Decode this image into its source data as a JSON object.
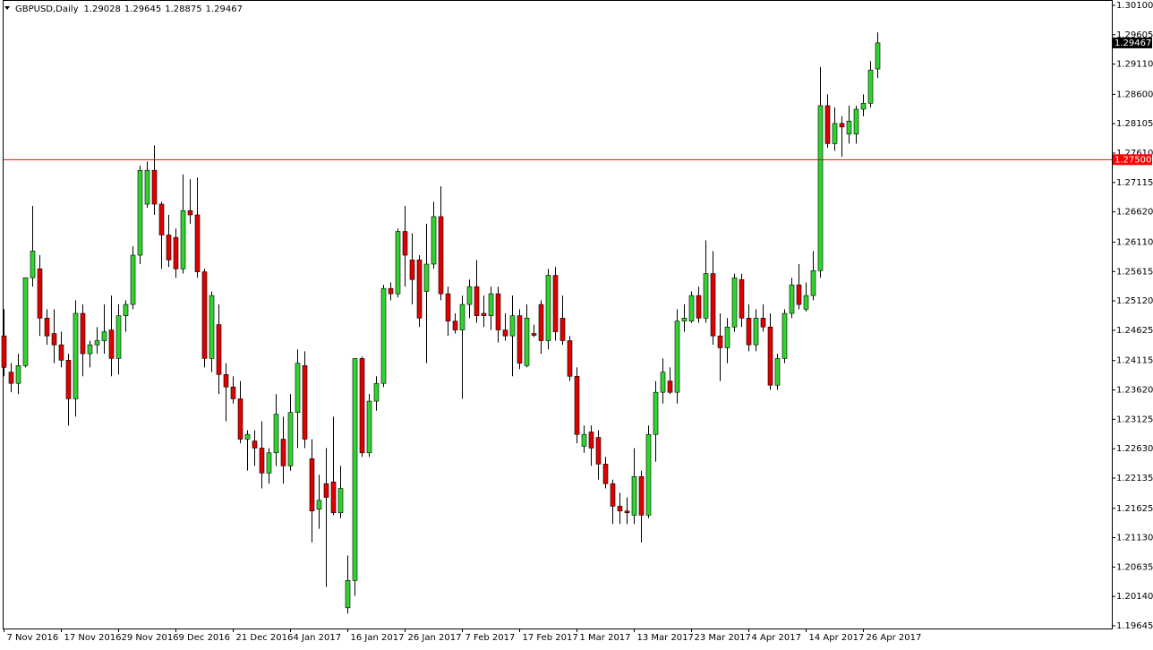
{
  "chart_data": {
    "type": "candlestick",
    "title": "GBPUSD,Daily",
    "categories": [
      "7 Nov 2016",
      null,
      null,
      null,
      null,
      null,
      null,
      null,
      "17 Nov 2016",
      null,
      null,
      null,
      null,
      null,
      null,
      null,
      "29 Nov 2016",
      null,
      null,
      null,
      null,
      null,
      null,
      null,
      "9 Dec 2016",
      null,
      null,
      null,
      null,
      null,
      null,
      null,
      "21 Dec 2016",
      null,
      null,
      null,
      null,
      null,
      null,
      null,
      "4 Jan 2017",
      null,
      null,
      null,
      null,
      null,
      null,
      null,
      "16 Jan 2017",
      null,
      null,
      null,
      null,
      null,
      null,
      null,
      "26 Jan 2017",
      null,
      null,
      null,
      null,
      null,
      null,
      null,
      "7 Feb 2017",
      null,
      null,
      null,
      null,
      null,
      null,
      null,
      "17 Feb 2017",
      null,
      null,
      null,
      null,
      null,
      null,
      null,
      "1 Mar 2017",
      null,
      null,
      null,
      null,
      null,
      null,
      null,
      "13 Mar 2017",
      null,
      null,
      null,
      null,
      null,
      null,
      null,
      "23 Mar 2017",
      null,
      null,
      null,
      null,
      null,
      null,
      null,
      "4 Apr 2017",
      null,
      null,
      null,
      null,
      null,
      null,
      null,
      "14 Apr 2017",
      null,
      null,
      null,
      null,
      null,
      null,
      null,
      "26 Apr 2017",
      null,
      null
    ],
    "open": [
      1.2453,
      1.2392,
      1.2373,
      1.2403,
      1.2551,
      1.2566,
      1.2483,
      1.2457,
      1.2438,
      1.2412,
      1.2347,
      1.2491,
      1.2423,
      1.2438,
      1.2445,
      1.2463,
      1.2415,
      1.2487,
      1.2506,
      1.2589,
      1.2675,
      1.2732,
      1.2675,
      1.2623,
      1.2619,
      1.2566,
      1.2664,
      1.2657,
      1.2561,
      1.2415,
      1.2472,
      1.2388,
      1.2367,
      1.2347,
      1.2279,
      1.2276,
      1.2264,
      1.2222,
      1.2256,
      1.2279,
      1.2234,
      1.2324,
      1.2403,
      1.2246,
      1.2161,
      1.2204,
      1.2207,
      1.2155,
      1.1995,
      1.2041,
      1.2415,
      1.2256,
      1.2343,
      1.2373,
      1.2533,
      1.2524,
      1.2629,
      1.2581,
      1.2581,
      1.2528,
      1.2574,
      1.2654,
      1.2524,
      1.2478,
      1.2463,
      1.2506,
      1.2536,
      1.2491,
      1.2487,
      1.2524,
      1.2463,
      1.2453,
      1.2487,
      1.2403,
      1.2457,
      1.2506,
      1.2445,
      1.2555,
      1.2483,
      1.2445,
      1.2385,
      1.2267,
      1.2291,
      1.2282,
      1.2237,
      1.2204,
      1.2166,
      1.2158,
      1.2151,
      1.2216,
      1.2151,
      1.2287,
      1.2358,
      1.2377,
      1.2358,
      1.2478,
      1.2478,
      1.2521,
      1.2483,
      1.2558,
      1.2453,
      1.2433,
      1.2468,
      1.2548,
      1.2483,
      1.2438,
      1.2483,
      1.2468,
      1.237,
      1.2415,
      1.2491,
      1.2539,
      1.2498,
      1.2521,
      1.2563,
      1.2841,
      1.2777,
      1.2811,
      1.2793,
      1.2793,
      1.2835,
      1.2845,
      1.29028
    ],
    "high": [
      1.2498,
      1.2407,
      1.2423,
      1.2551,
      1.2672,
      1.2589,
      1.2498,
      1.2498,
      1.246,
      1.2423,
      1.2513,
      1.2506,
      1.2445,
      1.2468,
      1.2506,
      1.2521,
      1.2506,
      1.2513,
      1.2604,
      1.274,
      1.2747,
      1.2774,
      1.2679,
      1.2657,
      1.2634,
      1.2725,
      1.2717,
      1.272,
      1.2566,
      1.2528,
      1.2506,
      1.2407,
      1.2385,
      1.2377,
      1.2294,
      1.2294,
      1.2309,
      1.2264,
      1.2355,
      1.2317,
      1.2355,
      1.243,
      1.2427,
      1.2279,
      1.2219,
      1.2264,
      1.2317,
      1.2234,
      1.2083,
      1.2415,
      1.2418,
      1.2355,
      1.2385,
      1.2539,
      1.2543,
      1.2634,
      1.2672,
      1.2626,
      1.2589,
      1.2642,
      1.2679,
      1.2705,
      1.2536,
      1.2491,
      1.2521,
      1.2548,
      1.2581,
      1.2521,
      1.2536,
      1.2536,
      1.2491,
      1.2521,
      1.2498,
      1.2506,
      1.2472,
      1.2513,
      1.2566,
      1.2569,
      1.2521,
      1.2453,
      1.24,
      1.2302,
      1.2302,
      1.2294,
      1.2249,
      1.2211,
      1.2189,
      1.2181,
      1.2264,
      1.2226,
      1.2302,
      1.2377,
      1.2415,
      1.24,
      1.2498,
      1.2506,
      1.2528,
      1.2536,
      1.2614,
      1.2596,
      1.2491,
      1.2483,
      1.2558,
      1.2558,
      1.2506,
      1.2498,
      1.2506,
      1.2491,
      1.2423,
      1.2498,
      1.2551,
      1.2574,
      1.2543,
      1.2596,
      1.2906,
      1.286,
      1.2838,
      1.2823,
      1.2841,
      1.2841,
      1.286,
      1.2916,
      1.29645
    ],
    "low": [
      1.2385,
      1.2358,
      1.2355,
      1.24,
      1.2536,
      1.2453,
      1.2438,
      1.2407,
      1.24,
      1.2302,
      1.2317,
      1.2385,
      1.24,
      1.2423,
      1.2423,
      1.2385,
      1.2388,
      1.246,
      1.2498,
      1.2574,
      1.2669,
      1.2657,
      1.2566,
      1.2569,
      1.2551,
      1.2558,
      1.2642,
      1.2551,
      1.24,
      1.2392,
      1.2355,
      1.2309,
      1.2339,
      1.2272,
      1.2226,
      1.2234,
      1.2196,
      1.2204,
      1.2234,
      1.2204,
      1.2226,
      1.2264,
      1.2264,
      1.2105,
      1.2128,
      1.203,
      1.2151,
      1.2146,
      1.1985,
      1.2015,
      1.2249,
      1.2249,
      1.2327,
      1.2367,
      1.2513,
      1.2518,
      1.2536,
      1.2506,
      1.2468,
      1.2407,
      1.2566,
      1.2513,
      1.2453,
      1.2457,
      1.2347,
      1.2483,
      1.2475,
      1.2468,
      1.2463,
      1.2442,
      1.2445,
      1.2385,
      1.2397,
      1.24,
      1.2451,
      1.2423,
      1.243,
      1.2445,
      1.2438,
      1.2377,
      1.2272,
      1.2256,
      1.2234,
      1.2211,
      1.2196,
      1.2136,
      1.2136,
      1.2136,
      1.2136,
      1.2105,
      1.2146,
      1.2241,
      1.2339,
      1.2355,
      1.2339,
      1.246,
      1.2475,
      1.2475,
      1.2475,
      1.2438,
      1.2377,
      1.2407,
      1.246,
      1.2468,
      1.2427,
      1.2427,
      1.246,
      1.2362,
      1.2362,
      1.2407,
      1.2483,
      1.2498,
      1.2494,
      1.2513,
      1.2551,
      1.277,
      1.2765,
      1.2755,
      1.2777,
      1.2777,
      1.2823,
      1.2838,
      1.28875
    ],
    "close": [
      1.24,
      1.2373,
      1.2403,
      1.2551,
      1.2596,
      1.2483,
      1.2453,
      1.2438,
      1.2412,
      1.2347,
      1.2491,
      1.2423,
      1.2438,
      1.2445,
      1.246,
      1.2415,
      1.2487,
      1.2506,
      1.2589,
      1.2732,
      1.2732,
      1.2675,
      1.2623,
      1.2581,
      1.2566,
      1.2664,
      1.2657,
      1.2561,
      1.2415,
      1.2521,
      1.2388,
      1.2367,
      1.2347,
      1.2279,
      1.2287,
      1.2264,
      1.2222,
      1.2256,
      1.2321,
      1.2234,
      1.2324,
      1.2407,
      1.2279,
      1.2158,
      1.2176,
      1.2181,
      1.2155,
      1.2196,
      1.2041,
      1.2415,
      1.2256,
      1.2343,
      1.2373,
      1.2533,
      1.2524,
      1.2629,
      1.2589,
      1.2548,
      1.2483,
      1.2574,
      1.2654,
      1.2524,
      1.2478,
      1.2463,
      1.2506,
      1.2536,
      1.2487,
      1.2487,
      1.2524,
      1.2463,
      1.2453,
      1.2487,
      1.2407,
      1.2483,
      1.2454,
      1.2445,
      1.2555,
      1.246,
      1.2445,
      1.2385,
      1.2287,
      1.2287,
      1.2264,
      1.2237,
      1.2204,
      1.2166,
      1.2158,
      1.2155,
      1.2216,
      1.2151,
      1.2287,
      1.2358,
      1.2392,
      1.2358,
      1.2478,
      1.2483,
      1.2521,
      1.2483,
      1.2558,
      1.2453,
      1.2433,
      1.2468,
      1.2551,
      1.2483,
      1.2438,
      1.2483,
      1.2468,
      1.237,
      1.2415,
      1.2491,
      1.2539,
      1.2506,
      1.2521,
      1.2563,
      1.2841,
      1.2777,
      1.2811,
      1.2805,
      1.2815,
      1.2835,
      1.2845,
      1.2901,
      1.29467
    ],
    "up_color": "#2fd42f",
    "down_color": "#e00000",
    "ylim": [
      1.1963,
      1.3019
    ],
    "yticks": [
      {
        "value": 1.301,
        "label": "1.30100"
      },
      {
        "value": 1.29605,
        "label": "1.29605"
      },
      {
        "value": 1.2911,
        "label": "1.29110"
      },
      {
        "value": 1.286,
        "label": "1.28600"
      },
      {
        "value": 1.28105,
        "label": "1.28105"
      },
      {
        "value": 1.2761,
        "label": "1.27610"
      },
      {
        "value": 1.27115,
        "label": "1.27115"
      },
      {
        "value": 1.2662,
        "label": "1.26620"
      },
      {
        "value": 1.2611,
        "label": "1.26110"
      },
      {
        "value": 1.25615,
        "label": "1.25615"
      },
      {
        "value": 1.2512,
        "label": "1.25120"
      },
      {
        "value": 1.24625,
        "label": "1.24625"
      },
      {
        "value": 1.24115,
        "label": "1.24115"
      },
      {
        "value": 1.2362,
        "label": "1.23620"
      },
      {
        "value": 1.23125,
        "label": "1.23125"
      },
      {
        "value": 1.2263,
        "label": "1.22630"
      },
      {
        "value": 1.22135,
        "label": "1.22135"
      },
      {
        "value": 1.21625,
        "label": "1.21625"
      },
      {
        "value": 1.2113,
        "label": "1.21130"
      },
      {
        "value": 1.20635,
        "label": "1.20635"
      },
      {
        "value": 1.2014,
        "label": "1.20140"
      },
      {
        "value": 1.19645,
        "label": "1.19645"
      }
    ],
    "hline": {
      "value": 1.275,
      "label": "1.27500",
      "color": "#ff0000"
    },
    "grid": false
  }
}
